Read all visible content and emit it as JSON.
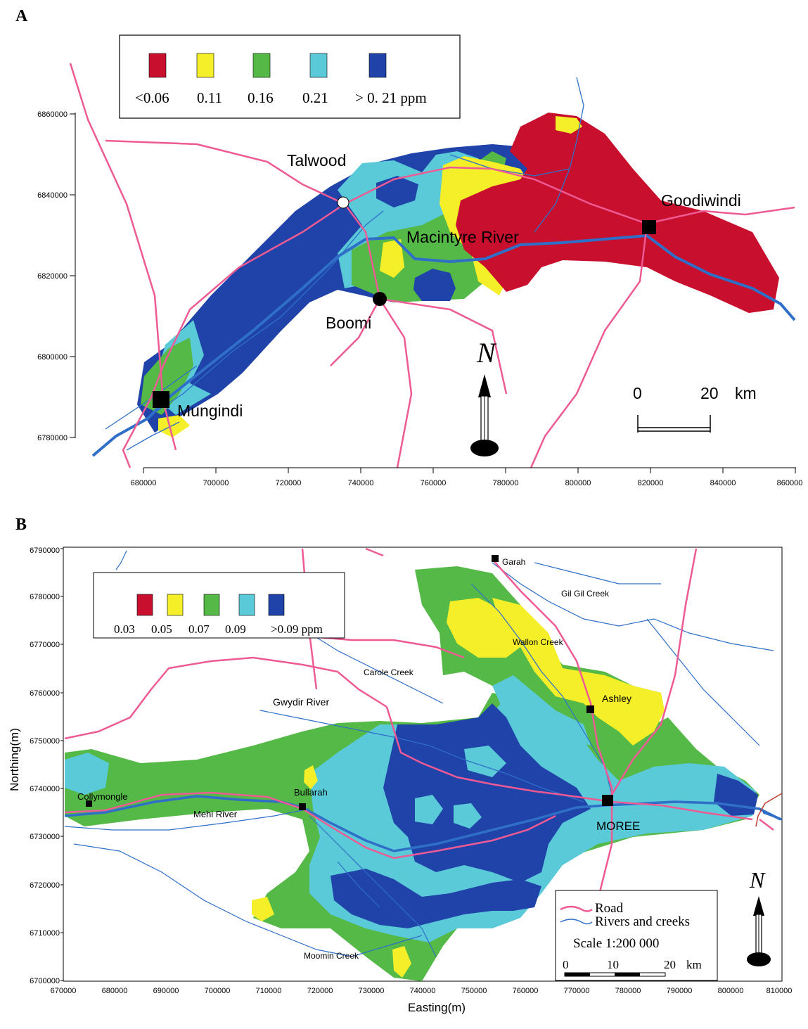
{
  "panelA": {
    "label": "A",
    "legend": {
      "items": [
        {
          "label": "<0.06",
          "color": "#c8102e"
        },
        {
          "label": "0.11",
          "color": "#f5ef2a"
        },
        {
          "label": "0.16",
          "color": "#55b947"
        },
        {
          "label": "0.21",
          "color": "#5bcad8"
        },
        {
          "label": "> 0. 21 ppm",
          "color": "#1f43a8"
        }
      ]
    },
    "places": {
      "talwood": "Talwood",
      "goodiwindi": "Goodiwindi",
      "river": "Macintyre River",
      "boomi": "Boomi",
      "mungindi": "Mungindi"
    },
    "north": "N",
    "scale": {
      "start": "0",
      "end": "20",
      "unit": "km"
    },
    "y_ticks": [
      "6860000",
      "6840000",
      "6820000",
      "6800000",
      "6780000"
    ],
    "x_ticks": [
      "680000",
      "700000",
      "720000",
      "740000",
      "760000",
      "780000",
      "800000",
      "820000",
      "840000",
      "860000"
    ]
  },
  "panelB": {
    "label": "B",
    "legend": {
      "items": [
        {
          "label": "0.03",
          "color": "#c8102e"
        },
        {
          "label": "0.05",
          "color": "#f5ef2a"
        },
        {
          "label": "0.07",
          "color": "#55b947"
        },
        {
          "label": "0.09",
          "color": "#5bcad8"
        },
        {
          "label": ">0.09 ppm",
          "color": "#1f43a8"
        }
      ]
    },
    "places": {
      "garah": "Garah",
      "gilgil": "Gil Gil Creek",
      "wallon": "Wallon Creek",
      "carole": "Carole Creek",
      "gwydir": "Gwydir River",
      "ashley": "Ashley",
      "collymongle": "Collymongle",
      "bullarah": "Bullarah",
      "mehi": "Mehi River",
      "moree": "MOREE",
      "moomin": "Moomin Creek"
    },
    "map_legend": {
      "road": "Road",
      "rivers": "Rivers and creeks"
    },
    "scale_text": "Scale 1:200 000",
    "scale": {
      "a": "0",
      "b": "10",
      "c": "20",
      "unit": "km"
    },
    "north": "N",
    "y_title": "Northing(m)",
    "x_title": "Easting(m)",
    "y_ticks": [
      "6790000",
      "6780000",
      "6770000",
      "6760000",
      "6750000",
      "6740000",
      "6730000",
      "6720000",
      "6710000",
      "6700000"
    ],
    "x_ticks": [
      "670000",
      "680000",
      "690000",
      "700000",
      "710000",
      "720000",
      "730000",
      "740000",
      "750000",
      "760000",
      "770000",
      "780000",
      "790000",
      "800000",
      "810000"
    ]
  }
}
